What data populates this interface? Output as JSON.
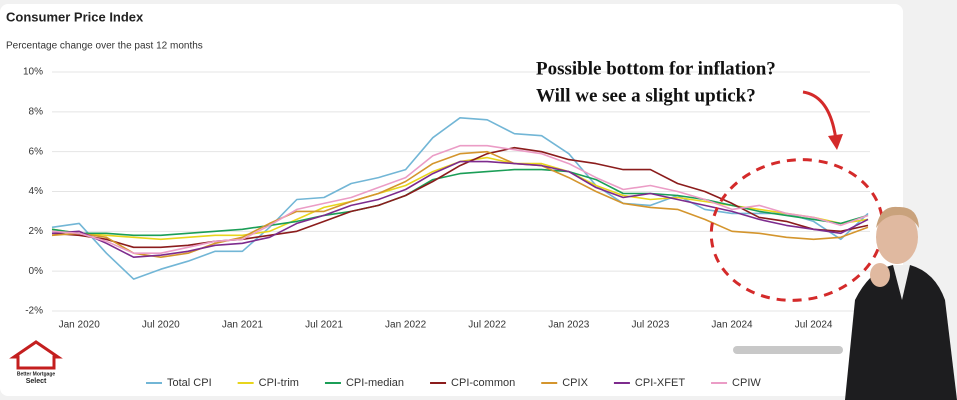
{
  "chart_data": {
    "type": "line",
    "title": "Consumer Price Index",
    "subtitle": "Percentage change over the past 12 months",
    "annotation": [
      "Possible bottom for inflation?",
      "Will we see a slight uptick?"
    ],
    "logo": [
      "Better Mortgage",
      "Select"
    ],
    "categories": [
      null,
      "Jan 2020",
      null,
      null,
      "Jul 2020",
      null,
      null,
      "Jan 2021",
      null,
      null,
      "Jul 2021",
      null,
      null,
      "Jan 2022",
      null,
      null,
      "Jul 2022",
      null,
      null,
      "Jan 2023",
      null,
      null,
      "Jul 2023",
      null,
      null,
      "Jan 2024",
      null,
      null,
      "Jul 2024",
      null,
      null
    ],
    "ylim": [
      -2,
      10
    ],
    "yticks": [
      {
        "value": -2,
        "label": "-2%"
      },
      {
        "value": 0,
        "label": "0%"
      },
      {
        "value": 2,
        "label": "2%"
      },
      {
        "value": 4,
        "label": "4%"
      },
      {
        "value": 6,
        "label": "6%"
      },
      {
        "value": 8,
        "label": "8%"
      },
      {
        "value": 10,
        "label": "10%"
      }
    ],
    "grid": true,
    "legend": "bottom",
    "series": [
      {
        "name": "Total CPI",
        "color": "#72b6d6",
        "values": [
          2.2,
          2.4,
          0.9,
          -0.4,
          0.1,
          0.5,
          1.0,
          1.0,
          2.2,
          3.6,
          3.7,
          4.4,
          4.7,
          5.1,
          6.7,
          7.7,
          7.6,
          6.9,
          6.8,
          5.9,
          4.3,
          3.4,
          3.3,
          3.8,
          3.1,
          2.9,
          2.9,
          2.9,
          2.5,
          1.6,
          2.9
        ]
      },
      {
        "name": "CPI-trim",
        "color": "#e8d51c",
        "values": [
          2.1,
          1.9,
          1.8,
          1.7,
          1.6,
          1.7,
          1.8,
          1.8,
          2.0,
          2.6,
          3.2,
          3.5,
          3.9,
          4.3,
          5.0,
          5.5,
          5.7,
          5.4,
          5.4,
          5.0,
          4.3,
          3.8,
          3.6,
          3.7,
          3.5,
          3.3,
          3.1,
          2.9,
          2.7,
          2.4,
          2.6
        ]
      },
      {
        "name": "CPI-median",
        "color": "#1b9e57",
        "values": [
          2.1,
          1.9,
          1.9,
          1.8,
          1.8,
          1.9,
          2.0,
          2.1,
          2.3,
          2.5,
          2.8,
          3.0,
          3.3,
          3.8,
          4.6,
          4.9,
          5.0,
          5.1,
          5.1,
          5.0,
          4.6,
          3.9,
          3.9,
          3.8,
          3.6,
          3.3,
          3.0,
          2.8,
          2.6,
          2.4,
          2.8
        ]
      },
      {
        "name": "CPI-common",
        "color": "#8b1c1c",
        "values": [
          1.9,
          1.8,
          1.6,
          1.2,
          1.2,
          1.3,
          1.5,
          1.6,
          1.8,
          2.0,
          2.5,
          3.0,
          3.3,
          3.8,
          4.5,
          5.3,
          5.9,
          6.2,
          6.0,
          5.6,
          5.4,
          5.1,
          5.1,
          4.4,
          4.0,
          3.4,
          2.7,
          2.5,
          2.1,
          2.0,
          2.3
        ]
      },
      {
        "name": "CPIX",
        "color": "#d4952d",
        "values": [
          1.8,
          1.9,
          1.7,
          0.9,
          0.7,
          0.9,
          1.4,
          1.7,
          2.4,
          3.0,
          3.0,
          3.5,
          3.9,
          4.5,
          5.4,
          5.9,
          6.0,
          5.4,
          5.3,
          4.7,
          4.0,
          3.4,
          3.2,
          3.1,
          2.6,
          2.0,
          1.9,
          1.7,
          1.6,
          1.7,
          2.2
        ]
      },
      {
        "name": "CPI-XFET",
        "color": "#7d2b8d",
        "values": [
          1.9,
          2.0,
          1.4,
          0.7,
          0.8,
          1.0,
          1.3,
          1.4,
          1.7,
          2.4,
          2.8,
          3.3,
          3.6,
          4.1,
          4.9,
          5.5,
          5.5,
          5.4,
          5.3,
          5.0,
          4.2,
          3.7,
          3.9,
          3.6,
          3.3,
          3.0,
          2.6,
          2.3,
          2.1,
          1.9,
          2.6
        ]
      },
      {
        "name": "CPIW",
        "color": "#eb9cc6",
        "values": [
          2.0,
          1.9,
          1.5,
          0.9,
          0.9,
          1.2,
          1.5,
          1.6,
          2.3,
          3.1,
          3.4,
          3.7,
          4.2,
          4.7,
          5.8,
          6.3,
          6.3,
          6.1,
          5.9,
          5.4,
          4.7,
          4.1,
          4.3,
          4.0,
          3.6,
          3.1,
          3.3,
          2.9,
          2.7,
          2.3,
          2.8
        ]
      }
    ]
  }
}
